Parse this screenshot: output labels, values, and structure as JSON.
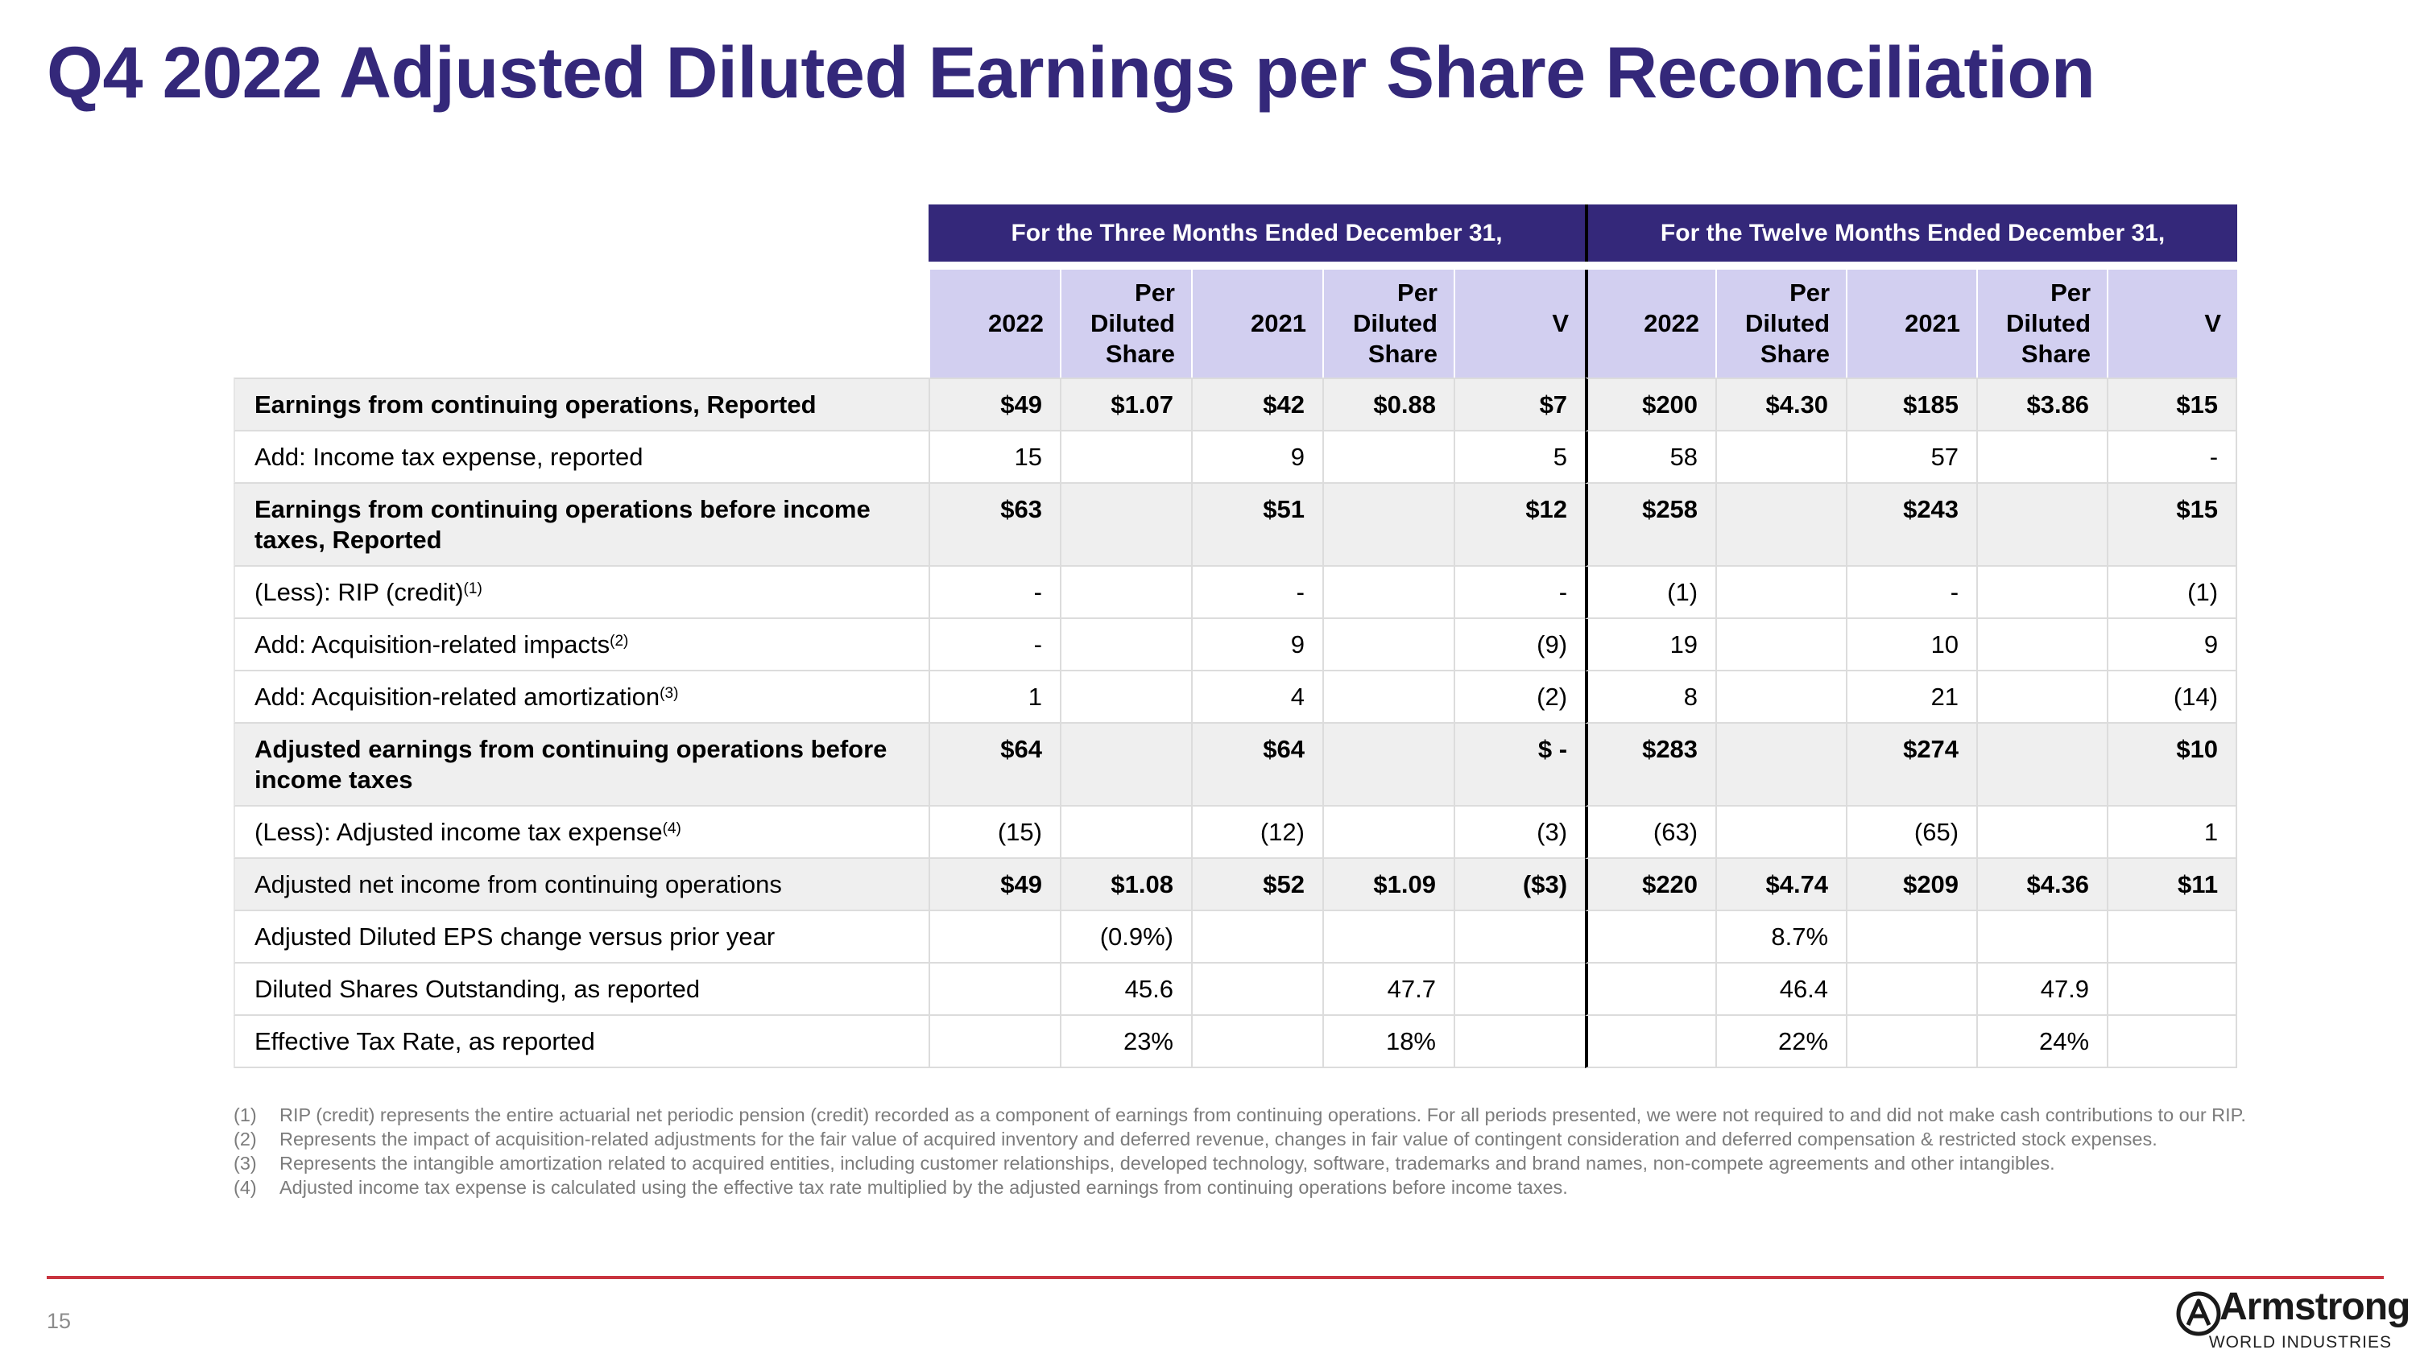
{
  "title": "Q4 2022 Adjusted Diluted Earnings per Share Reconciliation",
  "table": {
    "period_headers": [
      "For the Three Months Ended December 31,",
      "For the Twelve Months Ended December 31,"
    ],
    "columns": [
      "2022",
      "Per Diluted Share",
      "2021",
      "Per Diluted Share",
      "V",
      "2022",
      "Per Diluted Share",
      "2021",
      "Per Diluted Share",
      "V"
    ],
    "rows": [
      {
        "label": "Earnings from continuing operations, Reported",
        "values": [
          "$49",
          "$1.07",
          "$42",
          "$0.88",
          "$7",
          "$200",
          "$4.30",
          "$185",
          "$3.86",
          "$15"
        ]
      },
      {
        "label": "Add: Income tax expense, reported",
        "values": [
          "15",
          "",
          "9",
          "",
          "5",
          "58",
          "",
          "57",
          "",
          "-"
        ]
      },
      {
        "label": "Earnings from continuing operations before income taxes, Reported",
        "values": [
          "$63",
          "",
          "$51",
          "",
          "$12",
          "$258",
          "",
          "$243",
          "",
          "$15"
        ]
      },
      {
        "label": "(Less): RIP (credit)",
        "sup": "(1)",
        "values": [
          "-",
          "",
          "-",
          "",
          "-",
          "(1)",
          "",
          "-",
          "",
          "(1)"
        ]
      },
      {
        "label": "Add: Acquisition-related impacts",
        "sup": "(2)",
        "values": [
          "-",
          "",
          "9",
          "",
          "(9)",
          "19",
          "",
          "10",
          "",
          "9"
        ]
      },
      {
        "label": "Add: Acquisition-related amortization",
        "sup": "(3)",
        "values": [
          "1",
          "",
          "4",
          "",
          "(2)",
          "8",
          "",
          "21",
          "",
          "(14)"
        ]
      },
      {
        "label": "Adjusted earnings from continuing operations before income taxes",
        "values": [
          "$64",
          "",
          "$64",
          "",
          "$ -",
          "$283",
          "",
          "$274",
          "",
          "$10"
        ]
      },
      {
        "label": "(Less): Adjusted income tax expense",
        "sup": "(4)",
        "values": [
          "(15)",
          "",
          "(12)",
          "",
          "(3)",
          "(63)",
          "",
          "(65)",
          "",
          "1"
        ]
      },
      {
        "label": "Adjusted net income from continuing operations",
        "values": [
          "$49",
          "$1.08",
          "$52",
          "$1.09",
          "($3)",
          "$220",
          "$4.74",
          "$209",
          "$4.36",
          "$11"
        ]
      },
      {
        "label": "Adjusted Diluted EPS change versus prior year",
        "values": [
          "",
          "(0.9%)",
          "",
          "",
          "",
          "",
          "8.7%",
          "",
          "",
          ""
        ]
      },
      {
        "label": "Diluted Shares Outstanding, as reported",
        "values": [
          "",
          "45.6",
          "",
          "47.7",
          "",
          "",
          "46.4",
          "",
          "47.9",
          ""
        ]
      },
      {
        "label": "Effective Tax Rate, as reported",
        "values": [
          "",
          "23%",
          "",
          "18%",
          "",
          "",
          "22%",
          "",
          "24%",
          ""
        ]
      }
    ]
  },
  "footnotes": [
    {
      "num": "(1)",
      "text": "RIP (credit) represents the entire actuarial net periodic pension (credit) recorded as a component of earnings from continuing operations. For all periods presented, we were not required to and did not make cash contributions to our RIP."
    },
    {
      "num": "(2)",
      "text": "Represents the impact of acquisition-related adjustments for the fair value of acquired inventory and deferred revenue, changes in fair value of contingent consideration and deferred compensation & restricted stock expenses."
    },
    {
      "num": "(3)",
      "text": "Represents the intangible amortization related to acquired entities, including customer relationships, developed technology, software, trademarks and brand names, non-compete agreements and other intangibles."
    },
    {
      "num": "(4)",
      "text": "Adjusted income tax expense is calculated using the effective tax rate multiplied by the adjusted earnings from continuing operations before income taxes."
    }
  ],
  "page_number": "15",
  "logo": {
    "wordmark": "Armstrong",
    "subtitle": "WORLD INDUSTRIES"
  },
  "colors": {
    "title": "#34287a",
    "header_bg": "#34287a",
    "subheader_bg": "#d2cff0",
    "shaded_row": "#efefef",
    "rule": "#c9343f"
  }
}
